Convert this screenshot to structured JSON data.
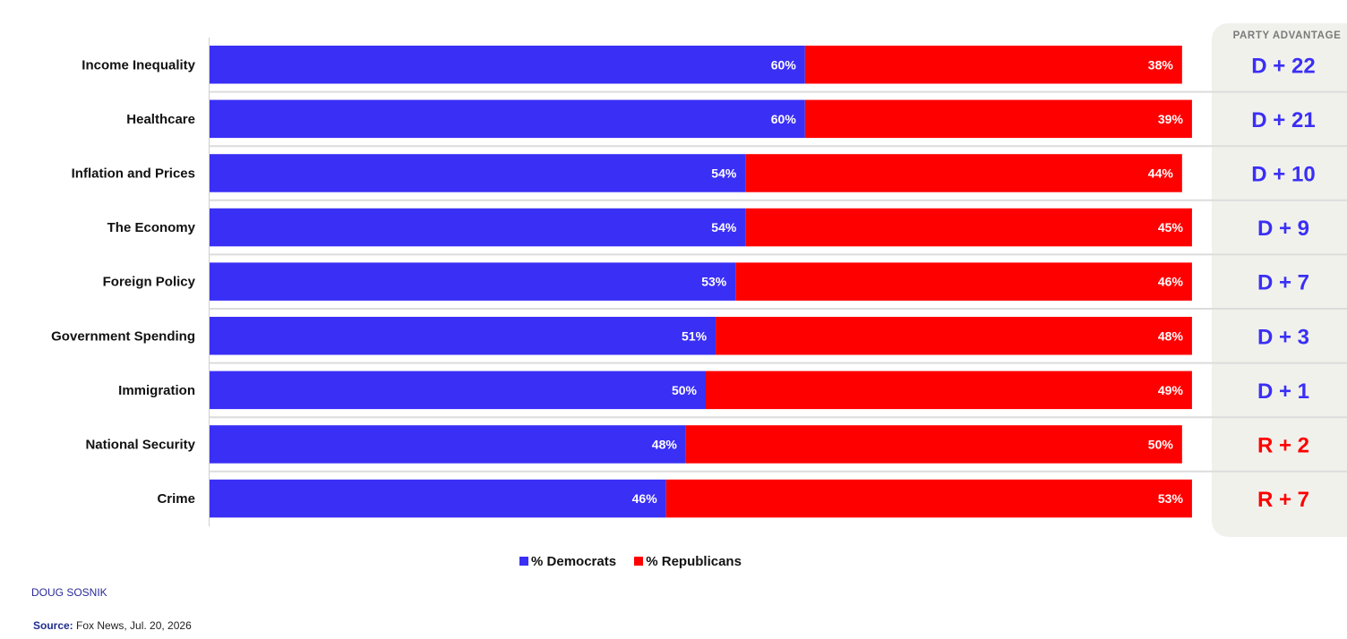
{
  "chart_data": {
    "type": "bar",
    "stacked": true,
    "orientation": "horizontal",
    "categories": [
      "Income Inequality",
      "Healthcare",
      "Inflation and Prices",
      "The Economy",
      "Foreign Policy",
      "Government Spending",
      "Immigration",
      "National Security",
      "Crime"
    ],
    "series": [
      {
        "name": "% Democrats",
        "color": "#3a2ff5",
        "values": [
          60,
          60,
          54,
          54,
          53,
          51,
          50,
          48,
          46
        ]
      },
      {
        "name": "% Republicans",
        "color": "#ff0000",
        "values": [
          38,
          39,
          44,
          45,
          46,
          48,
          49,
          50,
          53
        ]
      }
    ],
    "value_labels": {
      "democrats": [
        "60%",
        "60%",
        "54%",
        "54%",
        "53%",
        "51%",
        "50%",
        "48%",
        "46%"
      ],
      "republicans": [
        "38%",
        "39%",
        "44%",
        "45%",
        "46%",
        "48%",
        "49%",
        "50%",
        "53%"
      ]
    },
    "advantage": {
      "header": "PARTY ADVANTAGE",
      "labels": [
        "D + 22",
        "D + 21",
        "D + 10",
        "D + 9",
        "D + 7",
        "D + 3",
        "D + 1",
        "R + 2",
        "R + 7"
      ],
      "parties": [
        "D",
        "D",
        "D",
        "D",
        "D",
        "D",
        "D",
        "R",
        "R"
      ]
    },
    "xlim": [
      0,
      100
    ],
    "legend_position": "bottom"
  },
  "legend": {
    "democrats": "% Democrats",
    "republicans": "% Republicans"
  },
  "credit": "DOUG SOSNIK",
  "source": {
    "label": "Source:",
    "text": " Fox News, Jul. 20, 2026"
  },
  "colors": {
    "democrat": "#3a2ff5",
    "republican": "#ff0000",
    "panel": "#f1f1ec",
    "advantage_d": "#3a2ff5",
    "advantage_r": "#ff0000"
  }
}
